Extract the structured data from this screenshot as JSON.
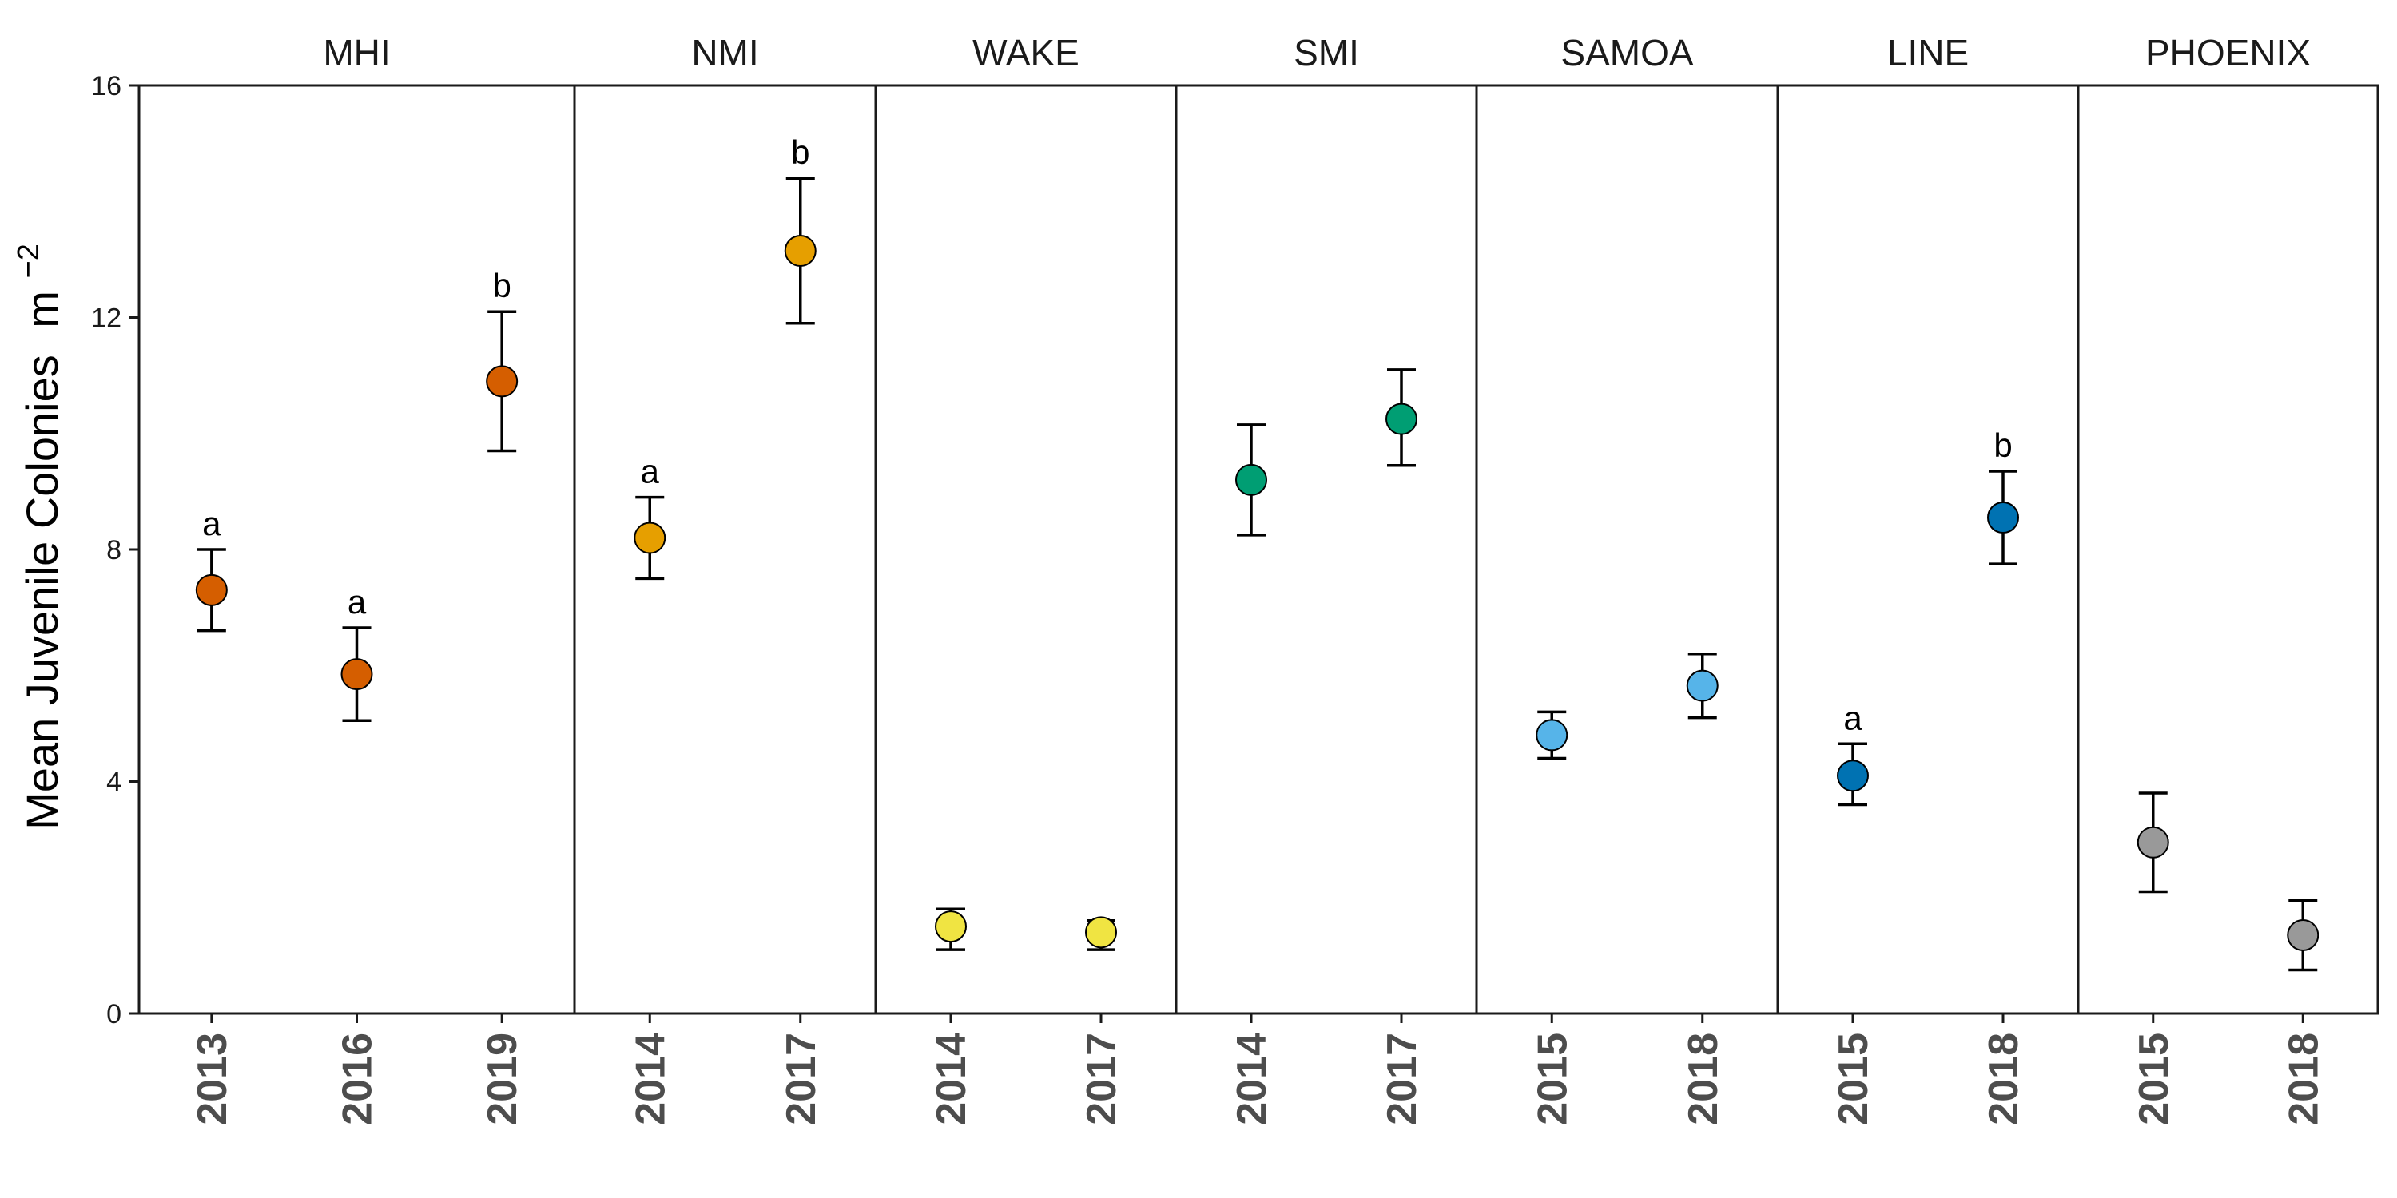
{
  "chart_data": {
    "type": "scatter",
    "ylabel": "Mean Juvenile Colonies",
    "ylabel_unit_base": "m",
    "ylabel_unit_exp": "−2",
    "ylim": [
      0,
      16
    ],
    "yticks": [
      0,
      4,
      8,
      12,
      16
    ],
    "grid": false,
    "legend": "none",
    "panels": [
      {
        "name": "MHI",
        "color": "#D55E00",
        "points": [
          {
            "x": "2013",
            "y": 7.3,
            "ymin": 6.6,
            "ymax": 8.0,
            "letter": "a"
          },
          {
            "x": "2016",
            "y": 5.85,
            "ymin": 5.05,
            "ymax": 6.65,
            "letter": "a"
          },
          {
            "x": "2019",
            "y": 10.9,
            "ymin": 9.7,
            "ymax": 12.1,
            "letter": "b"
          }
        ]
      },
      {
        "name": "NMI",
        "color": "#E69F00",
        "points": [
          {
            "x": "2014",
            "y": 8.2,
            "ymin": 7.5,
            "ymax": 8.9,
            "letter": "a"
          },
          {
            "x": "2017",
            "y": 13.15,
            "ymin": 11.9,
            "ymax": 14.4,
            "letter": "b"
          }
        ]
      },
      {
        "name": "WAKE",
        "color": "#F0E442",
        "points": [
          {
            "x": "2014",
            "y": 1.5,
            "ymin": 1.1,
            "ymax": 1.8,
            "letter": ""
          },
          {
            "x": "2017",
            "y": 1.4,
            "ymin": 1.1,
            "ymax": 1.6,
            "letter": ""
          }
        ]
      },
      {
        "name": "SMI",
        "color": "#009E73",
        "points": [
          {
            "x": "2014",
            "y": 9.2,
            "ymin": 8.25,
            "ymax": 10.15,
            "letter": ""
          },
          {
            "x": "2017",
            "y": 10.25,
            "ymin": 9.45,
            "ymax": 11.1,
            "letter": ""
          }
        ]
      },
      {
        "name": "SAMOA",
        "color": "#56B4E9",
        "points": [
          {
            "x": "2015",
            "y": 4.8,
            "ymin": 4.4,
            "ymax": 5.2,
            "letter": ""
          },
          {
            "x": "2018",
            "y": 5.65,
            "ymin": 5.1,
            "ymax": 6.2,
            "letter": ""
          }
        ]
      },
      {
        "name": "LINE",
        "color": "#0072B2",
        "points": [
          {
            "x": "2015",
            "y": 4.1,
            "ymin": 3.6,
            "ymax": 4.65,
            "letter": "a"
          },
          {
            "x": "2018",
            "y": 8.55,
            "ymin": 7.75,
            "ymax": 9.35,
            "letter": "b"
          }
        ]
      },
      {
        "name": "PHOENIX",
        "color": "#999999",
        "points": [
          {
            "x": "2015",
            "y": 2.95,
            "ymin": 2.1,
            "ymax": 3.8,
            "letter": ""
          },
          {
            "x": "2018",
            "y": 1.35,
            "ymin": 0.75,
            "ymax": 1.95,
            "letter": ""
          }
        ]
      }
    ]
  }
}
